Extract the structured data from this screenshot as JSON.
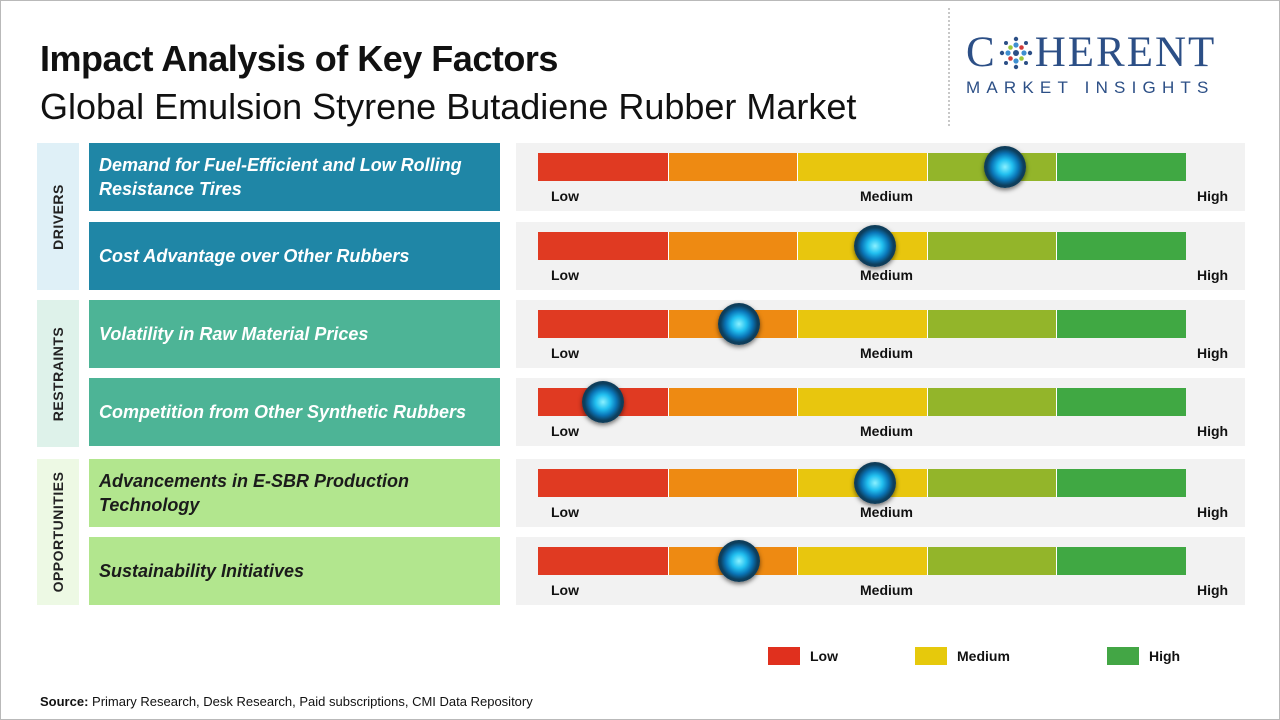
{
  "header": {
    "title": "Impact Analysis of Key Factors",
    "subtitle": "Global Emulsion Styrene Butadiene Rubber Market"
  },
  "logo": {
    "main_before": "C",
    "main_after": "HERENT",
    "sub": "MARKET INSIGHTS",
    "color": "#2c4f86"
  },
  "colors": {
    "scale": [
      "#e03a22",
      "#ee8a12",
      "#e8c60e",
      "#93b52a",
      "#40a843"
    ],
    "drivers": "#1f86a6",
    "drivers_light": "#dff0f7",
    "restraints": "#4db496",
    "restraints_light": "#def2ea",
    "opportunities": "#b2e68e",
    "opportunities_light": "#edf9e4"
  },
  "chart_data": {
    "type": "gauge",
    "scale": [
      "Low",
      "Medium",
      "High"
    ],
    "value_range": [
      0,
      1
    ],
    "groups": [
      {
        "category": "DRIVERS",
        "factors": [
          {
            "name": "Demand for Fuel-Efficient and Low Rolling Resistance Tires",
            "value": 0.72
          },
          {
            "name": "Cost Advantage over Other Rubbers",
            "value": 0.52
          }
        ]
      },
      {
        "category": "RESTRAINTS",
        "factors": [
          {
            "name": "Volatility in Raw Material Prices",
            "value": 0.31
          },
          {
            "name": "Competition from Other Synthetic Rubbers",
            "value": 0.1
          }
        ]
      },
      {
        "category": "OPPORTUNITIES",
        "factors": [
          {
            "name": "Advancements in E-SBR Production Technology",
            "value": 0.52
          },
          {
            "name": "Sustainability Initiatives",
            "value": 0.31
          }
        ]
      }
    ],
    "legend": [
      {
        "label": "Low",
        "color": "#e0301e"
      },
      {
        "label": "Medium",
        "color": "#e6c90c"
      },
      {
        "label": "High",
        "color": "#43a645"
      }
    ]
  },
  "source": {
    "label": "Source:",
    "text": "Primary Research, Desk Research, Paid subscriptions, CMI Data Repository"
  }
}
